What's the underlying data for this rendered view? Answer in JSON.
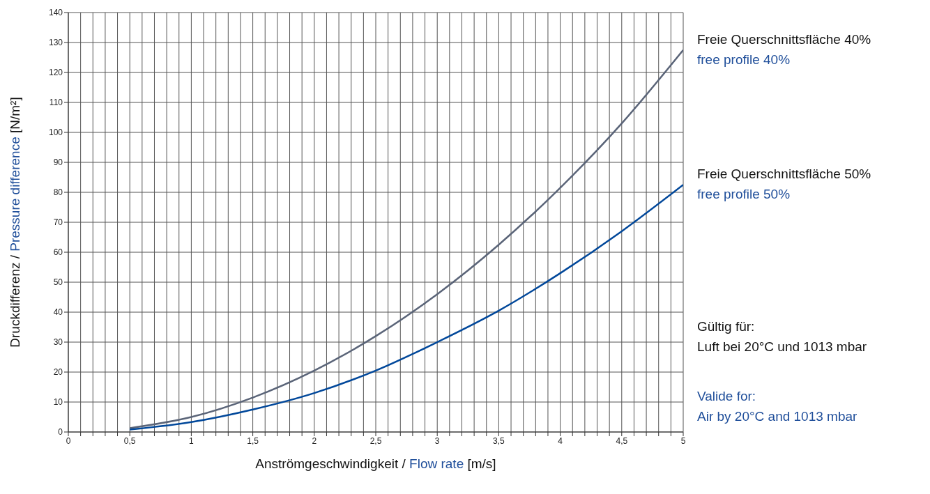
{
  "chart_data": {
    "type": "line",
    "xlabel": "Anströmgeschwindigkeit / Flow rate [m/s]",
    "ylabel": "Druckdifferenz / Pressure difference [N/m²]",
    "x": [
      0.5,
      1,
      1.5,
      2,
      2.5,
      3,
      3.5,
      4,
      4.5,
      5
    ],
    "series": [
      {
        "name": "Freie Querschnittsfläche 40%\nfree profile 40%",
        "color": "#5a6478",
        "values": [
          1.3,
          5,
          11.5,
          20.5,
          32,
          46,
          62.5,
          81.5,
          103,
          127.5
        ]
      },
      {
        "name": "Freie Querschnittsfläche 50%\nfree profile 50%",
        "color": "#00479a",
        "values": [
          0.8,
          3.3,
          7.5,
          13,
          20.5,
          30,
          40.5,
          53,
          67,
          82.5
        ]
      }
    ],
    "xlim": [
      0,
      5
    ],
    "xticks": [
      0,
      {
        "value": 0.1,
        "label": null
      },
      {
        "value": 0.2,
        "label": null
      },
      {
        "value": 0.3,
        "label": null
      },
      {
        "value": 0.4,
        "label": null
      },
      {
        "value": 0.5,
        "label": "0,5"
      },
      {
        "value": 0.6,
        "label": null
      },
      {
        "value": 0.7,
        "label": null
      },
      {
        "value": 0.8,
        "label": null
      },
      {
        "value": 0.9,
        "label": null
      },
      1,
      {
        "value": 1.1,
        "label": null
      },
      {
        "value": 1.2,
        "label": null
      },
      {
        "value": 1.3,
        "label": null
      },
      {
        "value": 1.4,
        "label": null
      },
      {
        "value": 1.5,
        "label": "1,5"
      },
      {
        "value": 1.6,
        "label": null
      },
      {
        "value": 1.7,
        "label": null
      },
      {
        "value": 1.8,
        "label": null
      },
      {
        "value": 1.9,
        "label": null
      },
      2,
      {
        "value": 2.1,
        "label": null
      },
      {
        "value": 2.2,
        "label": null
      },
      {
        "value": 2.3,
        "label": null
      },
      {
        "value": 2.4,
        "label": null
      },
      {
        "value": 2.5,
        "label": "2,5"
      },
      {
        "value": 2.6,
        "label": null
      },
      {
        "value": 2.7,
        "label": null
      },
      {
        "value": 2.8,
        "label": null
      },
      {
        "value": 2.9,
        "label": null
      },
      3,
      {
        "value": 3.1,
        "label": null
      },
      {
        "value": 3.2,
        "label": null
      },
      {
        "value": 3.3,
        "label": null
      },
      {
        "value": 3.4,
        "label": null
      },
      {
        "value": 3.5,
        "label": "3,5"
      },
      {
        "value": 3.6,
        "label": null
      },
      {
        "value": 3.7,
        "label": null
      },
      {
        "value": 3.8,
        "label": null
      },
      {
        "value": 3.9,
        "label": null
      },
      4,
      {
        "value": 4.1,
        "label": null
      },
      {
        "value": 4.2,
        "label": null
      },
      {
        "value": 4.3,
        "label": null
      },
      {
        "value": 4.4,
        "label": null
      },
      {
        "value": 4.5,
        "label": "4,5"
      },
      {
        "value": 4.6,
        "label": null
      },
      {
        "value": 4.7,
        "label": null
      },
      {
        "value": 4.8,
        "label": null
      },
      {
        "value": 4.9,
        "label": null
      },
      5
    ],
    "ylim": [
      0,
      140
    ],
    "yticks": [
      0,
      10,
      20,
      30,
      40,
      50,
      60,
      70,
      80,
      90,
      100,
      110,
      120,
      130,
      140
    ],
    "grid": true,
    "legend": "right",
    "marker": "none",
    "line_style": "solid",
    "annotations": [
      "Gültig für:\nLuft bei 20°C und 1013 mbar",
      "Valide for:\nAir by 20°C and 1013 mbar"
    ]
  }
}
